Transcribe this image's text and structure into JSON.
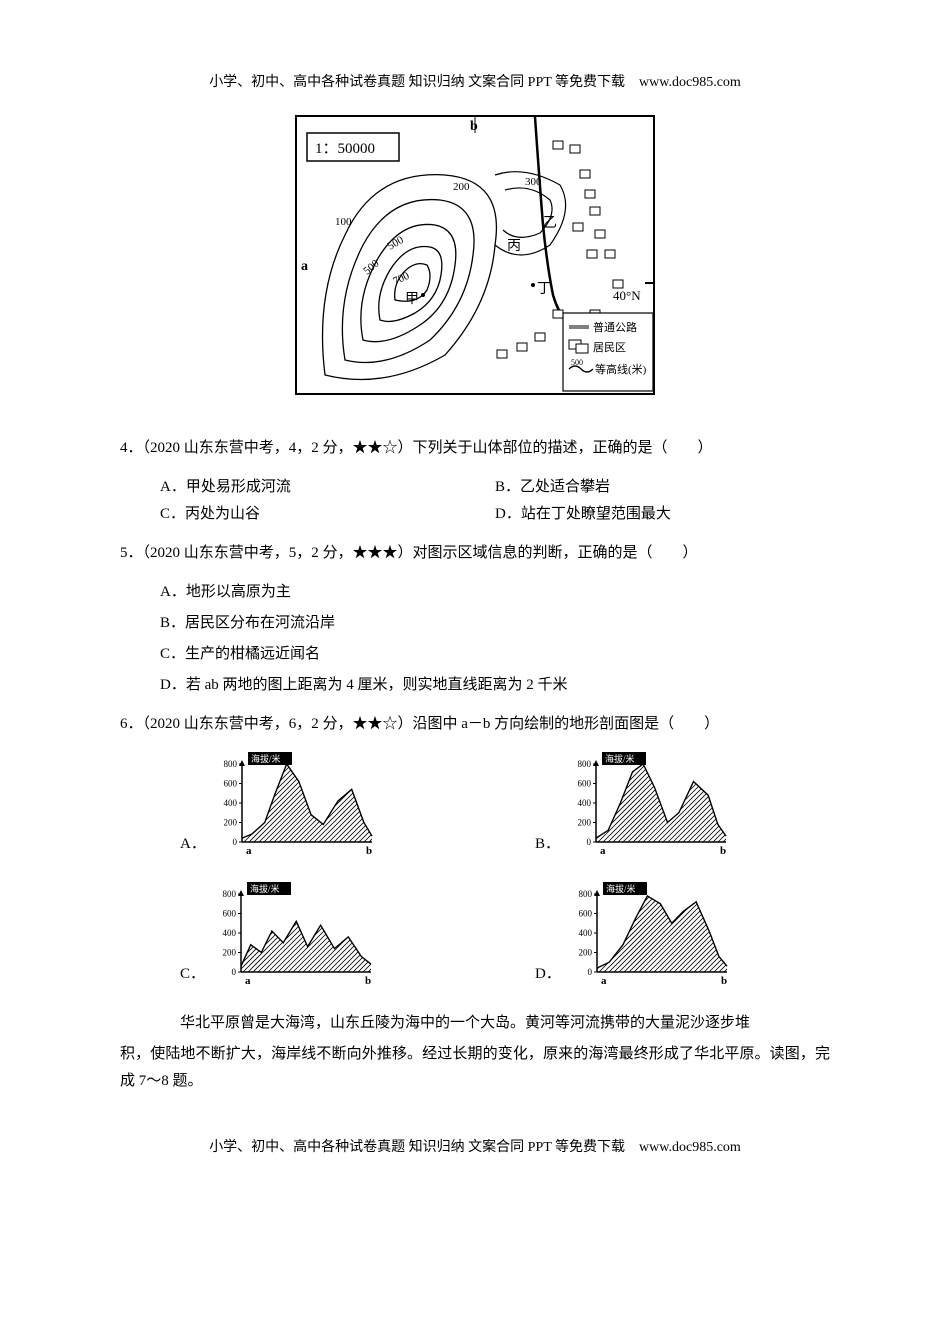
{
  "header": "小学、初中、高中各种试卷真题  知识归纳  文案合同  PPT 等免费下载　www.doc985.com",
  "footer": "小学、初中、高中各种试卷真题  知识归纳  文案合同  PPT 等免费下载　www.doc985.com",
  "map": {
    "scale_text": "1：50000",
    "top_label": "b",
    "left_label": "a",
    "contours": [
      "100",
      "200",
      "300",
      "500",
      "500",
      "700"
    ],
    "points": {
      "jia": "甲",
      "yi": "乙",
      "bing": "丙",
      "ding": "丁"
    },
    "lat_label": "40°N",
    "legend": {
      "road": "普通公路",
      "residential": "居民区",
      "contour": "等高线(米)",
      "contour_sample": "500"
    },
    "stroke": "#000000",
    "bg": "#ffffff"
  },
  "q4": {
    "stem": "4．（2020 山东东营中考，4，2 分，★★☆）下列关于山体部位的描述，正确的是（　　）",
    "A": "A．甲处易形成河流",
    "B": "B．乙处适合攀岩",
    "C": "C．丙处为山谷",
    "D": "D．站在丁处瞭望范围最大"
  },
  "q5": {
    "stem": "5．（2020 山东东营中考，5，2 分，★★★）对图示区域信息的判断，正确的是（　　）",
    "A": "A．地形以高原为主",
    "B": "B．居民区分布在河流沿岸",
    "C": "C．生产的柑橘远近闻名",
    "D": "D．若 ab 两地的图上距离为 4 厘米，则实地直线距离为 2 千米"
  },
  "q6": {
    "stem": "6．（2020 山东东营中考，6，2 分，★★☆）沿图中 a－b 方向绘制的地形剖面图是（　　）",
    "labels": {
      "A": "A．",
      "B": "B．",
      "C": "C．",
      "D": "D．"
    }
  },
  "profiles": {
    "common": {
      "title": "海拔/米",
      "title_fontsize": 9,
      "yticks": [
        0,
        200,
        400,
        600,
        800
      ],
      "a_label": "a",
      "b_label": "b",
      "width": 160,
      "height": 100,
      "stroke": "#000000",
      "hatch_stroke": "#000000",
      "bg": "#ffffff"
    },
    "A": {
      "profile": [
        [
          0,
          40
        ],
        [
          12,
          80
        ],
        [
          28,
          200
        ],
        [
          40,
          480
        ],
        [
          55,
          800
        ],
        [
          70,
          620
        ],
        [
          85,
          280
        ],
        [
          100,
          180
        ],
        [
          118,
          420
        ],
        [
          135,
          540
        ],
        [
          150,
          200
        ],
        [
          160,
          60
        ]
      ]
    },
    "B": {
      "profile": [
        [
          0,
          40
        ],
        [
          15,
          120
        ],
        [
          30,
          400
        ],
        [
          45,
          720
        ],
        [
          58,
          800
        ],
        [
          72,
          560
        ],
        [
          88,
          200
        ],
        [
          102,
          300
        ],
        [
          120,
          620
        ],
        [
          138,
          480
        ],
        [
          150,
          180
        ],
        [
          160,
          60
        ]
      ]
    },
    "C": {
      "profile": [
        [
          0,
          60
        ],
        [
          12,
          280
        ],
        [
          25,
          200
        ],
        [
          38,
          420
        ],
        [
          52,
          300
        ],
        [
          68,
          520
        ],
        [
          82,
          260
        ],
        [
          98,
          480
        ],
        [
          115,
          240
        ],
        [
          132,
          360
        ],
        [
          148,
          160
        ],
        [
          160,
          80
        ]
      ]
    },
    "D": {
      "profile": [
        [
          0,
          40
        ],
        [
          15,
          100
        ],
        [
          32,
          280
        ],
        [
          48,
          560
        ],
        [
          62,
          780
        ],
        [
          78,
          700
        ],
        [
          92,
          500
        ],
        [
          106,
          620
        ],
        [
          122,
          720
        ],
        [
          138,
          420
        ],
        [
          150,
          160
        ],
        [
          160,
          60
        ]
      ]
    }
  },
  "passage": {
    "line1": "华北平原曾是大海湾，山东丘陵为海中的一个大岛。黄河等河流携带的大量泥沙逐步堆",
    "line2": "积，使陆地不断扩大，海岸线不断向外推移。经过长期的变化，原来的海湾最终形成了华北平原。读图，完成 7～8 题。"
  }
}
